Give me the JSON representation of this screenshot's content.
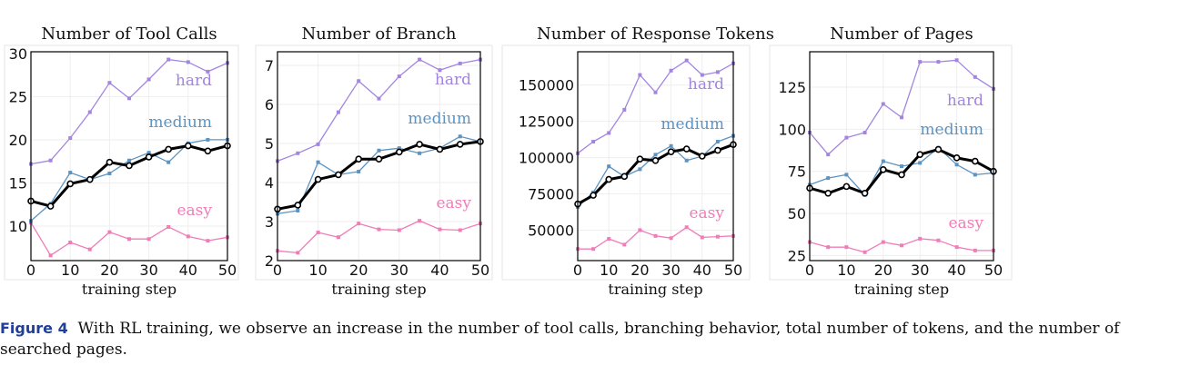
{
  "figure": {
    "caption_label": "Figure 4",
    "caption_text": "With RL training, we observe an increase in the number of tool calls, branching behavior, total number of tokens, and the number of searched pages."
  },
  "colors": {
    "hard": "#a385e0",
    "medium": "#5b93c2",
    "easy": "#f07cb8",
    "mean": "#000000",
    "grid": "#eeeeee"
  },
  "chart_data": [
    {
      "type": "line",
      "title": "Number of Tool Calls",
      "xlabel": "training step",
      "ylabel": "",
      "xlim": [
        0,
        50
      ],
      "ylim": [
        6,
        30.2
      ],
      "xticks": [
        0,
        10,
        20,
        30,
        40,
        50
      ],
      "yticks": [
        10,
        15,
        20,
        25,
        30
      ],
      "ytick_labels": [
        "10",
        "15",
        "20",
        "25",
        "30"
      ],
      "grid": true,
      "x": [
        0,
        5,
        10,
        15,
        20,
        25,
        30,
        35,
        40,
        45,
        50
      ],
      "series": [
        {
          "name": "hard",
          "key": "hard",
          "values": [
            17.2,
            17.6,
            20.2,
            23.2,
            26.6,
            24.8,
            27.0,
            29.3,
            29.0,
            27.9,
            28.9
          ]
        },
        {
          "name": "medium",
          "key": "medium",
          "values": [
            10.6,
            12.6,
            16.2,
            15.4,
            16.1,
            17.6,
            18.5,
            17.4,
            19.6,
            20.0,
            20.0
          ]
        },
        {
          "name": "easy",
          "key": "easy",
          "values": [
            10.4,
            6.6,
            8.1,
            7.3,
            9.3,
            8.5,
            8.5,
            9.9,
            8.8,
            8.3,
            8.7
          ]
        },
        {
          "name": "",
          "key": "mean",
          "values": [
            12.9,
            12.3,
            14.9,
            15.4,
            17.4,
            17.0,
            18.0,
            18.9,
            19.3,
            18.7,
            19.3
          ]
        }
      ]
    },
    {
      "type": "line",
      "title": "Number of Branch",
      "xlabel": "training step",
      "ylabel": "",
      "xlim": [
        0,
        50
      ],
      "ylim": [
        2,
        7.35
      ],
      "xticks": [
        0,
        10,
        20,
        30,
        40,
        50
      ],
      "yticks": [
        2,
        3,
        4,
        5,
        6,
        7
      ],
      "ytick_labels": [
        "2",
        "3",
        "4",
        "5",
        "6",
        "7"
      ],
      "grid": true,
      "x": [
        0,
        5,
        10,
        15,
        20,
        25,
        30,
        35,
        40,
        45,
        50
      ],
      "series": [
        {
          "name": "hard",
          "key": "hard",
          "values": [
            4.55,
            4.75,
            4.98,
            5.8,
            6.6,
            6.15,
            6.72,
            7.15,
            6.88,
            7.05,
            7.15
          ]
        },
        {
          "name": "medium",
          "key": "medium",
          "values": [
            3.2,
            3.28,
            4.52,
            4.2,
            4.28,
            4.82,
            4.88,
            4.75,
            4.88,
            5.18,
            5.05
          ]
        },
        {
          "name": "easy",
          "key": "easy",
          "values": [
            2.25,
            2.2,
            2.72,
            2.6,
            2.95,
            2.8,
            2.78,
            3.02,
            2.8,
            2.78,
            2.95
          ]
        },
        {
          "name": "",
          "key": "mean",
          "values": [
            3.32,
            3.42,
            4.08,
            4.2,
            4.6,
            4.6,
            4.78,
            4.98,
            4.85,
            4.98,
            5.05
          ]
        }
      ]
    },
    {
      "type": "line",
      "title": "Number of Response Tokens",
      "xlabel": "training step",
      "ylabel": "",
      "xlim": [
        0,
        50
      ],
      "ylim": [
        29000,
        173000
      ],
      "xticks": [
        0,
        10,
        20,
        30,
        40,
        50
      ],
      "yticks": [
        50000,
        75000,
        100000,
        125000,
        150000
      ],
      "ytick_labels": [
        "50000",
        "75000",
        "100000",
        "125000",
        "150000"
      ],
      "grid": true,
      "x": [
        0,
        5,
        10,
        15,
        20,
        25,
        30,
        35,
        40,
        45,
        50
      ],
      "series": [
        {
          "name": "hard",
          "key": "hard",
          "values": [
            103000,
            111000,
            117000,
            133000,
            157000,
            145000,
            160000,
            167000,
            157000,
            159000,
            165000
          ]
        },
        {
          "name": "medium",
          "key": "medium",
          "values": [
            66000,
            76000,
            94000,
            87000,
            92000,
            102000,
            108000,
            98000,
            101000,
            111000,
            115000
          ]
        },
        {
          "name": "easy",
          "key": "easy",
          "values": [
            37000,
            37000,
            44000,
            40000,
            50000,
            46000,
            44500,
            52000,
            45000,
            45500,
            46000
          ]
        },
        {
          "name": "",
          "key": "mean",
          "values": [
            68000,
            74000,
            85000,
            87000,
            99000,
            98000,
            104000,
            106000,
            101000,
            105000,
            109000
          ]
        }
      ]
    },
    {
      "type": "line",
      "title": "Number of Pages",
      "xlabel": "training step",
      "ylabel": "",
      "xlim": [
        0,
        50
      ],
      "ylim": [
        22,
        146
      ],
      "xticks": [
        0,
        10,
        20,
        30,
        40,
        50
      ],
      "yticks": [
        25,
        50,
        75,
        100,
        125
      ],
      "ytick_labels": [
        "25",
        "50",
        "75",
        "100",
        "125"
      ],
      "grid": true,
      "x": [
        0,
        5,
        10,
        15,
        20,
        25,
        30,
        35,
        40,
        45,
        50
      ],
      "series": [
        {
          "name": "hard",
          "key": "hard",
          "values": [
            98,
            85,
            95,
            98,
            115,
            107,
            140,
            140,
            141,
            131,
            124
          ]
        },
        {
          "name": "medium",
          "key": "medium",
          "values": [
            67,
            71,
            73,
            61,
            81,
            78,
            80,
            89,
            79,
            73,
            74
          ]
        },
        {
          "name": "easy",
          "key": "easy",
          "values": [
            33,
            30,
            30,
            27,
            33,
            31,
            35,
            34,
            30,
            28,
            28
          ]
        },
        {
          "name": "",
          "key": "mean",
          "values": [
            65,
            62,
            66,
            62,
            76,
            73,
            85,
            88,
            83,
            81,
            75
          ]
        }
      ]
    }
  ]
}
